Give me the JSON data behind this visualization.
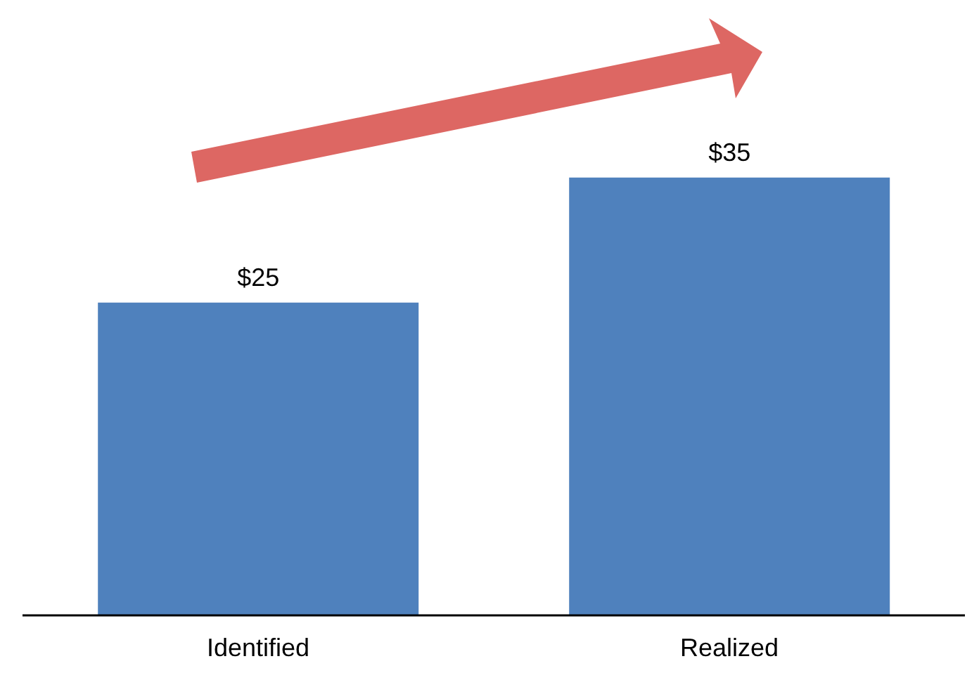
{
  "chart_data": {
    "type": "bar",
    "categories": [
      "Identified",
      "Realized"
    ],
    "values": [
      25,
      35
    ],
    "value_labels": [
      "$25",
      "$35"
    ],
    "color": "#4f81bd"
  }
}
